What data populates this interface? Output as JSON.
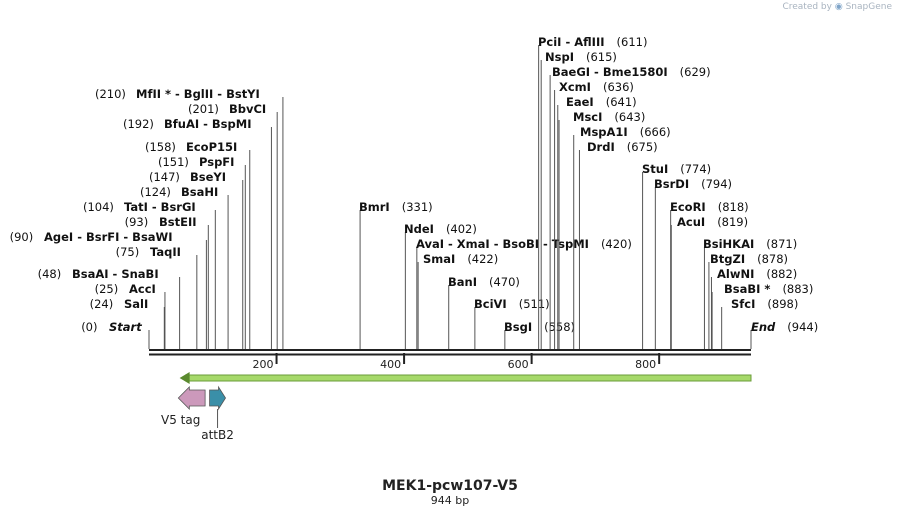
{
  "branding": {
    "prefix": "Created by",
    "product": "SnapGene"
  },
  "map": {
    "name": "MEK1-pcw107-V5",
    "length_label": "944 bp",
    "total_bp": 944,
    "ticks": [
      {
        "bp": 200,
        "label": "200"
      },
      {
        "bp": 400,
        "label": "400"
      },
      {
        "bp": 600,
        "label": "600"
      },
      {
        "bp": 800,
        "label": "800"
      }
    ],
    "orf": {
      "start": 48,
      "end": 944,
      "direction": "reverse",
      "color": "#a6d96a"
    },
    "features": [
      {
        "name": "V5 tag",
        "start": 46,
        "end": 88,
        "direction": "reverse",
        "color": "#cc99bb"
      },
      {
        "name": "attB2",
        "start": 95,
        "end": 120,
        "direction": "forward",
        "color": "#3a8fa8"
      }
    ],
    "sites": [
      {
        "names": [
          "Start"
        ],
        "pos": "(0)",
        "bp": 0,
        "endpoint": true
      },
      {
        "names": [
          "SalI"
        ],
        "pos": "(24)",
        "bp": 24
      },
      {
        "names": [
          "AccI"
        ],
        "pos": "(25)",
        "bp": 25
      },
      {
        "names": [
          "BsaAI",
          "SnaBI"
        ],
        "pos": "(48)",
        "bp": 48
      },
      {
        "names": [
          "TaqII"
        ],
        "pos": "(75)",
        "bp": 75
      },
      {
        "names": [
          "AgeI",
          "BsrFI",
          "BsaWI"
        ],
        "pos": "(90)",
        "bp": 90
      },
      {
        "names": [
          "BstEII"
        ],
        "pos": "(93)",
        "bp": 93
      },
      {
        "names": [
          "TatI",
          "BsrGI"
        ],
        "pos": "(104)",
        "bp": 104
      },
      {
        "names": [
          "BsaHI"
        ],
        "pos": "(124)",
        "bp": 124
      },
      {
        "names": [
          "BseYI"
        ],
        "pos": "(147)",
        "bp": 147
      },
      {
        "names": [
          "PspFI"
        ],
        "pos": "(151)",
        "bp": 151
      },
      {
        "names": [
          "EcoP15I"
        ],
        "pos": "(158)",
        "bp": 158
      },
      {
        "names": [
          "BfuAI",
          "BspMI"
        ],
        "pos": "(192)",
        "bp": 192
      },
      {
        "names": [
          "BbvCI"
        ],
        "pos": "(201)",
        "bp": 201
      },
      {
        "names": [
          "MfII *",
          "BglII",
          "BstYI"
        ],
        "pos": "(210)",
        "bp": 210
      },
      {
        "names": [
          "BmrI"
        ],
        "pos": "(331)",
        "bp": 331
      },
      {
        "names": [
          "NdeI"
        ],
        "pos": "(402)",
        "bp": 402
      },
      {
        "names": [
          "AvaI",
          "XmaI",
          "BsoBI",
          "TspMI"
        ],
        "pos": "(420)",
        "bp": 420
      },
      {
        "names": [
          "SmaI"
        ],
        "pos": "(422)",
        "bp": 422
      },
      {
        "names": [
          "BanI"
        ],
        "pos": "(470)",
        "bp": 470
      },
      {
        "names": [
          "BciVI"
        ],
        "pos": "(511)",
        "bp": 511
      },
      {
        "names": [
          "BsgI"
        ],
        "pos": "(558)",
        "bp": 558
      },
      {
        "names": [
          "PciI",
          "AflIII"
        ],
        "pos": "(611)",
        "bp": 611
      },
      {
        "names": [
          "NspI"
        ],
        "pos": "(615)",
        "bp": 615
      },
      {
        "names": [
          "BaeGI",
          "Bme1580I"
        ],
        "pos": "(629)",
        "bp": 629
      },
      {
        "names": [
          "XcmI"
        ],
        "pos": "(636)",
        "bp": 636
      },
      {
        "names": [
          "EaeI"
        ],
        "pos": "(641)",
        "bp": 641
      },
      {
        "names": [
          "MscI"
        ],
        "pos": "(643)",
        "bp": 643
      },
      {
        "names": [
          "MspA1I"
        ],
        "pos": "(666)",
        "bp": 666
      },
      {
        "names": [
          "DrdI"
        ],
        "pos": "(675)",
        "bp": 675
      },
      {
        "names": [
          "StuI"
        ],
        "pos": "(774)",
        "bp": 774
      },
      {
        "names": [
          "BsrDI"
        ],
        "pos": "(794)",
        "bp": 794
      },
      {
        "names": [
          "EcoRI"
        ],
        "pos": "(818)",
        "bp": 818
      },
      {
        "names": [
          "AcuI"
        ],
        "pos": "(819)",
        "bp": 819
      },
      {
        "names": [
          "BsiHKAI"
        ],
        "pos": "(871)",
        "bp": 871
      },
      {
        "names": [
          "BtgZI"
        ],
        "pos": "(878)",
        "bp": 878
      },
      {
        "names": [
          "AlwNI"
        ],
        "pos": "(882)",
        "bp": 882
      },
      {
        "names": [
          "BsaBI *"
        ],
        "pos": "(883)",
        "bp": 883
      },
      {
        "names": [
          "SfcI"
        ],
        "pos": "(898)",
        "bp": 898
      },
      {
        "names": [
          "End"
        ],
        "pos": "(944)",
        "bp": 944,
        "endpoint": true
      }
    ]
  }
}
